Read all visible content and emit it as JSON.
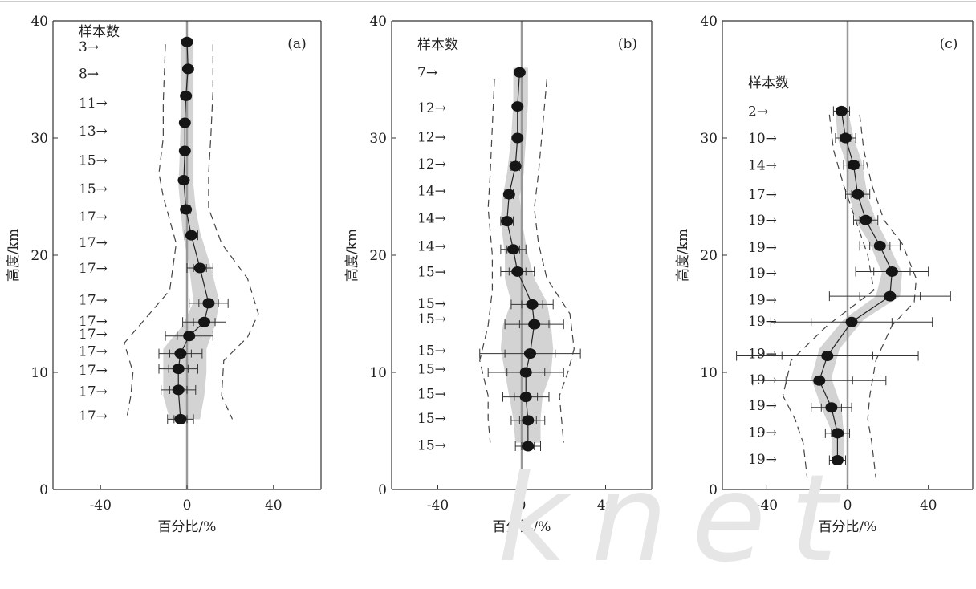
{
  "chart_data": [
    {
      "type": "scatter",
      "panel_label": "(a)",
      "xlabel": "百分比/%",
      "ylabel": "高度/km",
      "xlim": [
        -62,
        62
      ],
      "ylim": [
        0,
        40
      ],
      "xticks": [
        "-40",
        "0",
        "40"
      ],
      "yticks": [
        "0",
        "10",
        "20",
        "30",
        "40"
      ],
      "grid": false,
      "samples_header": "样本数",
      "sample_labels": [
        {
          "text": "3→",
          "y": 37.8
        },
        {
          "text": "8→",
          "y": 35.5
        },
        {
          "text": "11→",
          "y": 33.0
        },
        {
          "text": "13→",
          "y": 30.6
        },
        {
          "text": "15→",
          "y": 28.1
        },
        {
          "text": "15→",
          "y": 25.7
        },
        {
          "text": "17→",
          "y": 23.3
        },
        {
          "text": "17→",
          "y": 21.1
        },
        {
          "text": "17→",
          "y": 18.9
        },
        {
          "text": "17→",
          "y": 16.2
        },
        {
          "text": "17→",
          "y": 14.4
        },
        {
          "text": "17→",
          "y": 13.3
        },
        {
          "text": "17→",
          "y": 11.8
        },
        {
          "text": "17→",
          "y": 10.2
        },
        {
          "text": "17→",
          "y": 8.4
        },
        {
          "text": "17→",
          "y": 6.3
        }
      ],
      "points": [
        {
          "y": 38.2,
          "x": 0,
          "xerr": 0
        },
        {
          "y": 35.9,
          "x": 0.5,
          "xerr": 0
        },
        {
          "y": 33.6,
          "x": -0.5,
          "xerr": 0
        },
        {
          "y": 31.3,
          "x": -1,
          "xerr": 0
        },
        {
          "y": 28.9,
          "x": -1,
          "xerr": 0
        },
        {
          "y": 26.4,
          "x": -1.5,
          "xerr": 1
        },
        {
          "y": 23.9,
          "x": -0.5,
          "xerr": 2
        },
        {
          "y": 21.7,
          "x": 2,
          "xerr": 3
        },
        {
          "y": 18.9,
          "x": 6,
          "xerr": 6
        },
        {
          "y": 15.9,
          "x": 10,
          "xerr": 9
        },
        {
          "y": 14.3,
          "x": 8,
          "xerr": 10
        },
        {
          "y": 13.1,
          "x": 1,
          "xerr": 11
        },
        {
          "y": 11.6,
          "x": -3,
          "xerr": 10
        },
        {
          "y": 10.3,
          "x": -4,
          "xerr": 9
        },
        {
          "y": 8.5,
          "x": -4,
          "xerr": 8
        },
        {
          "y": 6.0,
          "x": -3,
          "xerr": 6
        }
      ],
      "band": [
        [
          38.5,
          -3,
          3
        ],
        [
          36,
          -3,
          3
        ],
        [
          34,
          -3,
          3
        ],
        [
          31,
          -3,
          3
        ],
        [
          28,
          -3.5,
          3
        ],
        [
          26,
          -4,
          3
        ],
        [
          24,
          -3,
          4
        ],
        [
          22,
          -2,
          6
        ],
        [
          19,
          1,
          11
        ],
        [
          16,
          3,
          15
        ],
        [
          14,
          -2,
          13
        ],
        [
          12,
          -11,
          9
        ],
        [
          10,
          -11,
          9
        ],
        [
          8,
          -11,
          8
        ],
        [
          6,
          -8,
          6
        ]
      ],
      "envelope_left": [
        [
          38,
          -10
        ],
        [
          33,
          -11
        ],
        [
          30,
          -11
        ],
        [
          27,
          -13
        ],
        [
          25,
          -11
        ],
        [
          21,
          -5
        ],
        [
          17,
          -8
        ],
        [
          14,
          -22
        ],
        [
          12.5,
          -29
        ],
        [
          10,
          -25
        ],
        [
          8,
          -26
        ],
        [
          6,
          -28
        ]
      ],
      "envelope_right": [
        [
          38,
          12
        ],
        [
          34,
          12
        ],
        [
          30,
          11
        ],
        [
          27,
          10
        ],
        [
          24,
          10
        ],
        [
          21,
          16
        ],
        [
          18,
          28
        ],
        [
          15,
          33
        ],
        [
          13,
          28
        ],
        [
          11,
          17
        ],
        [
          8,
          16
        ],
        [
          6,
          21
        ]
      ]
    },
    {
      "type": "scatter",
      "panel_label": "(b)",
      "xlabel": "百分比/%",
      "ylabel": "高度/km",
      "xlim": [
        -62,
        62
      ],
      "ylim": [
        0,
        40
      ],
      "xticks": [
        "-40",
        "0",
        "40"
      ],
      "yticks": [
        "0",
        "10",
        "20",
        "30",
        "40"
      ],
      "grid": false,
      "samples_header": "样本数",
      "sample_labels": [
        {
          "text": "7→",
          "y": 35.6
        },
        {
          "text": "12→",
          "y": 32.6
        },
        {
          "text": "12→",
          "y": 30.1
        },
        {
          "text": "12→",
          "y": 27.8
        },
        {
          "text": "14→",
          "y": 25.5
        },
        {
          "text": "14→",
          "y": 23.2
        },
        {
          "text": "14→",
          "y": 20.8
        },
        {
          "text": "15→",
          "y": 18.6
        },
        {
          "text": "15→",
          "y": 15.9
        },
        {
          "text": "15→",
          "y": 14.6
        },
        {
          "text": "15→",
          "y": 11.9
        },
        {
          "text": "15→",
          "y": 10.3
        },
        {
          "text": "15→",
          "y": 8.2
        },
        {
          "text": "15→",
          "y": 6.1
        },
        {
          "text": "15→",
          "y": 3.8
        }
      ],
      "points": [
        {
          "y": 35.6,
          "x": -1,
          "xerr": 0
        },
        {
          "y": 32.7,
          "x": -2,
          "xerr": 0
        },
        {
          "y": 30.0,
          "x": -2,
          "xerr": 0
        },
        {
          "y": 27.6,
          "x": -3,
          "xerr": 2
        },
        {
          "y": 25.2,
          "x": -6,
          "xerr": 2
        },
        {
          "y": 22.9,
          "x": -7,
          "xerr": 3
        },
        {
          "y": 20.5,
          "x": -4,
          "xerr": 6
        },
        {
          "y": 18.6,
          "x": -2,
          "xerr": 8
        },
        {
          "y": 15.8,
          "x": 5,
          "xerr": 10
        },
        {
          "y": 14.1,
          "x": 6,
          "xerr": 14
        },
        {
          "y": 11.6,
          "x": 4,
          "xerr": 24
        },
        {
          "y": 10.0,
          "x": 2,
          "xerr": 18
        },
        {
          "y": 7.9,
          "x": 2,
          "xerr": 11
        },
        {
          "y": 5.9,
          "x": 3,
          "xerr": 8
        },
        {
          "y": 3.7,
          "x": 3,
          "xerr": 6
        }
      ],
      "band": [
        [
          36,
          -4,
          3
        ],
        [
          33,
          -4,
          3
        ],
        [
          30,
          -5,
          2
        ],
        [
          27,
          -7,
          1
        ],
        [
          25,
          -9,
          -1
        ],
        [
          23,
          -10,
          0
        ],
        [
          20,
          -8,
          3
        ],
        [
          18,
          -8,
          6
        ],
        [
          16,
          -5,
          12
        ],
        [
          14,
          -9,
          14
        ],
        [
          12,
          -10,
          15
        ],
        [
          10,
          -8,
          14
        ],
        [
          8,
          -6,
          10
        ],
        [
          6,
          -4,
          9
        ],
        [
          4,
          -3,
          9
        ]
      ],
      "envelope_left": [
        [
          35,
          -13
        ],
        [
          31,
          -14
        ],
        [
          27,
          -15
        ],
        [
          24,
          -16
        ],
        [
          20,
          -14
        ],
        [
          17,
          -14
        ],
        [
          14,
          -16
        ],
        [
          11,
          -20
        ],
        [
          8,
          -16
        ],
        [
          6,
          -16
        ],
        [
          4,
          -15
        ]
      ],
      "envelope_right": [
        [
          35,
          12
        ],
        [
          31,
          10
        ],
        [
          27,
          8
        ],
        [
          24,
          6
        ],
        [
          21,
          8
        ],
        [
          18,
          12
        ],
        [
          15,
          23
        ],
        [
          12,
          25
        ],
        [
          10,
          22
        ],
        [
          8,
          18
        ],
        [
          6,
          19
        ],
        [
          4,
          20
        ]
      ]
    },
    {
      "type": "scatter",
      "panel_label": "(c)",
      "xlabel": "百分比/%",
      "ylabel": "高度/km",
      "xlim": [
        -62,
        62
      ],
      "ylim": [
        0,
        40
      ],
      "xticks": [
        "-40",
        "0",
        "40"
      ],
      "yticks": [
        "0",
        "10",
        "20",
        "30",
        "40"
      ],
      "grid": false,
      "samples_header": "样本数",
      "sample_labels": [
        {
          "text": "2→",
          "y": 32.3
        },
        {
          "text": "10→",
          "y": 30.0
        },
        {
          "text": "14→",
          "y": 27.7
        },
        {
          "text": "17→",
          "y": 25.2
        },
        {
          "text": "19→",
          "y": 23.0
        },
        {
          "text": "19→",
          "y": 20.7
        },
        {
          "text": "19→",
          "y": 18.5
        },
        {
          "text": "19→",
          "y": 16.2
        },
        {
          "text": "19→",
          "y": 14.4
        },
        {
          "text": "19→",
          "y": 11.6
        },
        {
          "text": "19→",
          "y": 9.4
        },
        {
          "text": "19→",
          "y": 7.2
        },
        {
          "text": "19→",
          "y": 4.9
        },
        {
          "text": "19→",
          "y": 2.6
        }
      ],
      "points": [
        {
          "y": 32.3,
          "x": -3,
          "xerr": 4
        },
        {
          "y": 30.0,
          "x": -1,
          "xerr": 5
        },
        {
          "y": 27.7,
          "x": 3,
          "xerr": 5
        },
        {
          "y": 25.2,
          "x": 5,
          "xerr": 6
        },
        {
          "y": 23.0,
          "x": 9,
          "xerr": 6
        },
        {
          "y": 20.8,
          "x": 16,
          "xerr": 10
        },
        {
          "y": 18.6,
          "x": 22,
          "xerr": 18
        },
        {
          "y": 16.5,
          "x": 21,
          "xerr": 30
        },
        {
          "y": 14.3,
          "x": 2,
          "xerr": 40
        },
        {
          "y": 11.4,
          "x": -10,
          "xerr": 45
        },
        {
          "y": 9.3,
          "x": -14,
          "xerr": 33
        },
        {
          "y": 7.0,
          "x": -8,
          "xerr": 10
        },
        {
          "y": 4.8,
          "x": -5,
          "xerr": 6
        },
        {
          "y": 2.5,
          "x": -5,
          "xerr": 4
        }
      ],
      "band": [
        [
          32.5,
          -6,
          0
        ],
        [
          30,
          -5,
          3
        ],
        [
          28,
          -1,
          7
        ],
        [
          25,
          1,
          10
        ],
        [
          23,
          4,
          14
        ],
        [
          21,
          11,
          20
        ],
        [
          18.5,
          17,
          27
        ],
        [
          16.5,
          14,
          26
        ],
        [
          14.5,
          -2,
          8
        ],
        [
          12,
          -14,
          -4
        ],
        [
          9.5,
          -18,
          -8
        ],
        [
          7,
          -13,
          -3
        ],
        [
          5,
          -8,
          -2
        ],
        [
          2.5,
          -8,
          -2
        ]
      ],
      "envelope_left": [
        [
          32,
          -9
        ],
        [
          29,
          -7
        ],
        [
          26,
          -2
        ],
        [
          23,
          4
        ],
        [
          20,
          10
        ],
        [
          17,
          13
        ],
        [
          14,
          -10
        ],
        [
          11,
          -28
        ],
        [
          8,
          -32
        ],
        [
          6,
          -26
        ],
        [
          4,
          -22
        ],
        [
          1,
          -20
        ]
      ],
      "envelope_right": [
        [
          32,
          6
        ],
        [
          29,
          8
        ],
        [
          26,
          12
        ],
        [
          23,
          18
        ],
        [
          21,
          27
        ],
        [
          18,
          34
        ],
        [
          16,
          33
        ],
        [
          14,
          22
        ],
        [
          11,
          14
        ],
        [
          8,
          11
        ],
        [
          6,
          10
        ],
        [
          4,
          12
        ],
        [
          1,
          14
        ]
      ]
    }
  ],
  "colors": {
    "axis": "#333333",
    "zero_line": "#999999",
    "band": "#d3d3d3",
    "marker": "#151515",
    "envelope": "#444444"
  },
  "watermark": "knet"
}
